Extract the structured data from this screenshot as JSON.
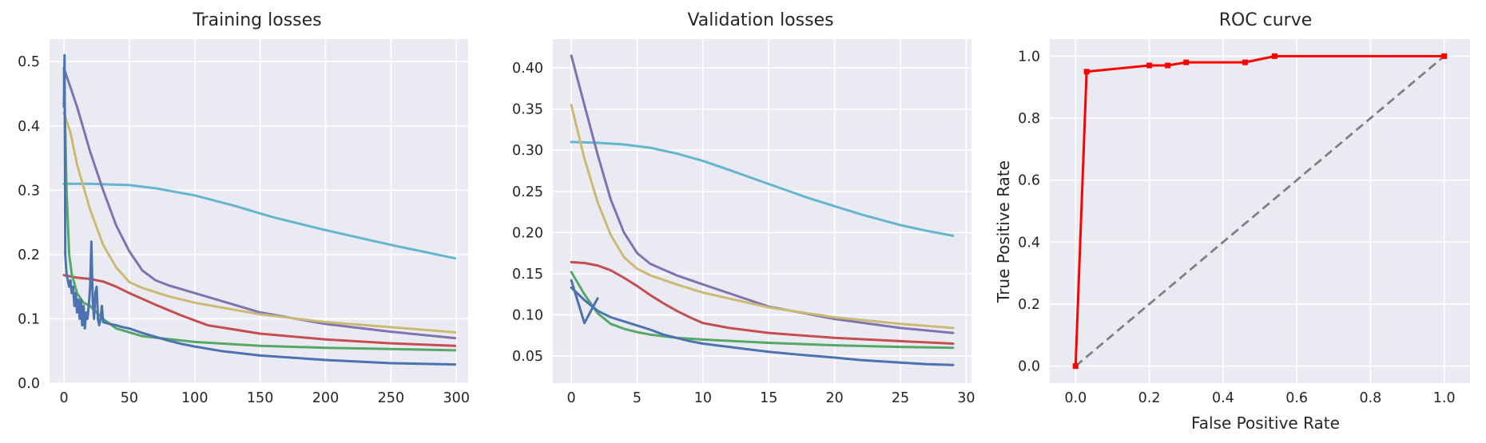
{
  "chart_data": [
    {
      "type": "line",
      "title": "Training losses",
      "xlabel": "",
      "ylabel": "",
      "xlim": [
        -11,
        309
      ],
      "ylim": [
        0,
        0.535
      ],
      "xticks": [
        0,
        50,
        100,
        150,
        200,
        250,
        300
      ],
      "yticks": [
        0.0,
        0.1,
        0.2,
        0.3,
        0.4,
        0.5
      ],
      "grid": true,
      "legend": "none",
      "series": [
        {
          "color": "#64b5cd",
          "x": [
            0,
            1,
            20,
            50,
            70,
            100,
            130,
            160,
            200,
            250,
            299
          ],
          "y": [
            0.31,
            0.31,
            0.31,
            0.308,
            0.303,
            0.292,
            0.276,
            0.258,
            0.238,
            0.215,
            0.194
          ]
        },
        {
          "color": "#8172b2",
          "x": [
            0,
            10,
            20,
            30,
            40,
            50,
            60,
            70,
            80,
            100,
            150,
            200,
            250,
            299
          ],
          "y": [
            0.49,
            0.43,
            0.36,
            0.3,
            0.245,
            0.205,
            0.175,
            0.16,
            0.152,
            0.14,
            0.11,
            0.092,
            0.08,
            0.07
          ]
        },
        {
          "color": "#ccb974",
          "x": [
            0,
            5,
            10,
            20,
            30,
            40,
            50,
            60,
            80,
            100,
            150,
            200,
            250,
            299
          ],
          "y": [
            0.42,
            0.39,
            0.34,
            0.27,
            0.215,
            0.18,
            0.157,
            0.148,
            0.135,
            0.125,
            0.107,
            0.095,
            0.087,
            0.079
          ]
        },
        {
          "color": "#c44e52",
          "x": [
            0,
            10,
            20,
            30,
            40,
            50,
            70,
            90,
            110,
            150,
            200,
            250,
            299
          ],
          "y": [
            0.168,
            0.164,
            0.162,
            0.158,
            0.15,
            0.14,
            0.122,
            0.105,
            0.09,
            0.077,
            0.068,
            0.062,
            0.058
          ]
        },
        {
          "color": "#55a868",
          "x": [
            0,
            2,
            4,
            6,
            10,
            15,
            20,
            30,
            40,
            60,
            100,
            150,
            200,
            250,
            299
          ],
          "y": [
            0.49,
            0.3,
            0.2,
            0.17,
            0.14,
            0.125,
            0.12,
            0.1,
            0.085,
            0.073,
            0.064,
            0.058,
            0.055,
            0.053,
            0.051
          ]
        },
        {
          "color": "#4c72b0",
          "x": [
            0,
            0.5,
            1,
            2,
            3,
            4,
            5,
            6,
            7,
            8,
            9,
            10,
            11,
            12,
            13,
            14,
            15,
            16,
            17,
            18,
            19,
            20,
            21,
            22,
            23,
            24,
            25,
            26,
            27,
            28,
            29,
            30,
            35,
            40,
            45,
            50,
            60,
            70,
            80,
            90,
            100,
            120,
            150,
            200,
            250,
            299
          ],
          "y": [
            0.43,
            0.51,
            0.2,
            0.17,
            0.16,
            0.15,
            0.16,
            0.14,
            0.15,
            0.12,
            0.14,
            0.11,
            0.13,
            0.1,
            0.13,
            0.09,
            0.12,
            0.085,
            0.11,
            0.1,
            0.12,
            0.15,
            0.22,
            0.13,
            0.1,
            0.14,
            0.15,
            0.1,
            0.09,
            0.1,
            0.12,
            0.095,
            0.092,
            0.09,
            0.087,
            0.085,
            0.078,
            0.072,
            0.066,
            0.061,
            0.057,
            0.05,
            0.043,
            0.036,
            0.031,
            0.029
          ]
        }
      ]
    },
    {
      "type": "line",
      "title": "Validation losses",
      "xlabel": "",
      "ylabel": "",
      "xlim": [
        -1.4,
        30.4
      ],
      "ylim": [
        0.017,
        0.435
      ],
      "xticks": [
        0,
        5,
        10,
        15,
        20,
        25,
        30
      ],
      "yticks": [
        0.05,
        0.1,
        0.15,
        0.2,
        0.25,
        0.3,
        0.35,
        0.4
      ],
      "grid": true,
      "legend": "none",
      "series": [
        {
          "color": "#64b5cd",
          "x": [
            0,
            2,
            4,
            6,
            8,
            10,
            12,
            15,
            18,
            20,
            22,
            25,
            27,
            29
          ],
          "y": [
            0.31,
            0.309,
            0.307,
            0.303,
            0.296,
            0.287,
            0.276,
            0.259,
            0.242,
            0.232,
            0.222,
            0.209,
            0.202,
            0.196
          ]
        },
        {
          "color": "#8172b2",
          "x": [
            0,
            1,
            2,
            3,
            4,
            5,
            6,
            7,
            8,
            10,
            15,
            20,
            25,
            29
          ],
          "y": [
            0.415,
            0.355,
            0.295,
            0.24,
            0.2,
            0.175,
            0.162,
            0.155,
            0.148,
            0.137,
            0.11,
            0.095,
            0.084,
            0.078
          ]
        },
        {
          "color": "#ccb974",
          "x": [
            0,
            1,
            2,
            3,
            4,
            5,
            6,
            8,
            10,
            15,
            20,
            25,
            29
          ],
          "y": [
            0.355,
            0.29,
            0.237,
            0.197,
            0.17,
            0.156,
            0.148,
            0.137,
            0.127,
            0.109,
            0.097,
            0.089,
            0.084
          ]
        },
        {
          "color": "#c44e52",
          "x": [
            0,
            1,
            2,
            3,
            4,
            5,
            6,
            7,
            8,
            9,
            10,
            12,
            15,
            20,
            25,
            29
          ],
          "y": [
            0.164,
            0.163,
            0.16,
            0.154,
            0.145,
            0.135,
            0.124,
            0.114,
            0.105,
            0.097,
            0.09,
            0.084,
            0.078,
            0.072,
            0.068,
            0.065
          ]
        },
        {
          "color": "#55a868",
          "x": [
            0,
            1,
            2,
            3,
            4,
            5,
            6,
            8,
            10,
            15,
            20,
            25,
            29
          ],
          "y": [
            0.152,
            0.125,
            0.102,
            0.089,
            0.083,
            0.079,
            0.076,
            0.072,
            0.07,
            0.066,
            0.063,
            0.061,
            0.06
          ]
        },
        {
          "color": "#4c72b0",
          "x": [
            0,
            1,
            2
          ],
          "y": [
            0.142,
            0.09,
            0.12
          ]
        },
        {
          "color": "#4c72b0",
          "x": [
            0,
            1,
            2,
            3,
            4,
            5,
            6,
            7,
            8,
            9,
            10,
            11,
            12,
            13,
            14,
            15,
            17,
            20,
            22,
            25,
            27,
            29
          ],
          "y": [
            0.133,
            0.118,
            0.105,
            0.097,
            0.092,
            0.087,
            0.082,
            0.076,
            0.072,
            0.068,
            0.065,
            0.063,
            0.061,
            0.059,
            0.057,
            0.055,
            0.052,
            0.048,
            0.045,
            0.042,
            0.04,
            0.039
          ]
        }
      ]
    },
    {
      "type": "line",
      "title": "ROC curve",
      "xlabel": "False Positive Rate",
      "ylabel": "True Positive Rate",
      "xlim": [
        -0.07,
        1.07
      ],
      "ylim": [
        -0.055,
        1.055
      ],
      "xticks": [
        "0.0",
        "0.2",
        "0.4",
        "0.6",
        "0.8",
        "1.0"
      ],
      "yticks": [
        "0.0",
        "0.2",
        "0.4",
        "0.6",
        "0.8",
        "1.0"
      ],
      "grid": true,
      "legend": "none",
      "series": [
        {
          "color": "#808080",
          "dashed": true,
          "x": [
            0,
            1
          ],
          "y": [
            0,
            1
          ]
        },
        {
          "color": "#ff0000",
          "markers": true,
          "x": [
            0.0,
            0.03,
            0.2,
            0.25,
            0.3,
            0.46,
            0.54,
            1.0
          ],
          "y": [
            0.0,
            0.95,
            0.97,
            0.97,
            0.98,
            0.98,
            1.0,
            1.0
          ]
        }
      ]
    }
  ]
}
